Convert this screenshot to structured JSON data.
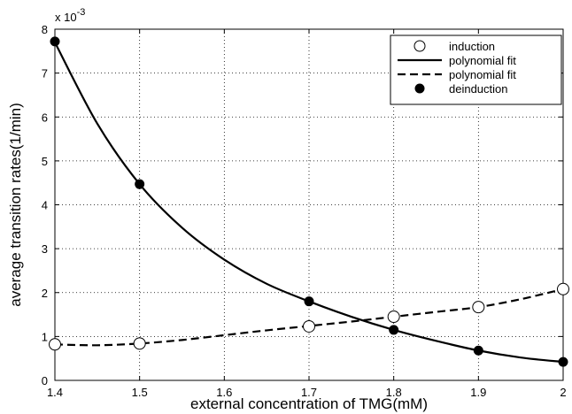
{
  "chart_data": {
    "type": "line",
    "title": "",
    "xlabel": "external concentration of TMG(mM)",
    "ylabel": "average transition rates(1/min)",
    "y_exponent_label": "x 10",
    "y_exponent_power": "-3",
    "xlim": [
      1.4,
      2.0
    ],
    "ylim": [
      0,
      8
    ],
    "xticks": [
      "1.4",
      "1.5",
      "1.6",
      "1.7",
      "1.8",
      "1.9",
      "2"
    ],
    "yticks": [
      "0",
      "1",
      "2",
      "3",
      "4",
      "5",
      "6",
      "7",
      "8"
    ],
    "grid": true,
    "legend_position": "top-right",
    "series": [
      {
        "name": "induction",
        "style": "open-circle-markers",
        "x": [
          1.4,
          1.5,
          1.7,
          1.8,
          1.9,
          2.0
        ],
        "y": [
          0.82,
          0.84,
          1.23,
          1.45,
          1.67,
          2.08
        ]
      },
      {
        "name": "polynomial fit",
        "style": "solid-line",
        "x": [
          1.4,
          1.45,
          1.5,
          1.55,
          1.6,
          1.65,
          1.7,
          1.75,
          1.8,
          1.85,
          1.9,
          1.95,
          2.0
        ],
        "y": [
          7.7,
          5.85,
          4.47,
          3.48,
          2.75,
          2.2,
          1.8,
          1.45,
          1.15,
          0.9,
          0.68,
          0.52,
          0.42
        ]
      },
      {
        "name": "polynomial fit",
        "style": "dashed-line",
        "x": [
          1.4,
          1.45,
          1.5,
          1.55,
          1.6,
          1.65,
          1.7,
          1.75,
          1.8,
          1.85,
          1.9,
          1.95,
          2.0
        ],
        "y": [
          0.82,
          0.8,
          0.84,
          0.92,
          1.03,
          1.14,
          1.24,
          1.34,
          1.45,
          1.56,
          1.67,
          1.85,
          2.08
        ]
      },
      {
        "name": "deinduction",
        "style": "filled-circle-markers",
        "x": [
          1.4,
          1.5,
          1.7,
          1.8,
          1.9,
          2.0
        ],
        "y": [
          7.72,
          4.47,
          1.8,
          1.15,
          0.68,
          0.42
        ]
      }
    ]
  }
}
